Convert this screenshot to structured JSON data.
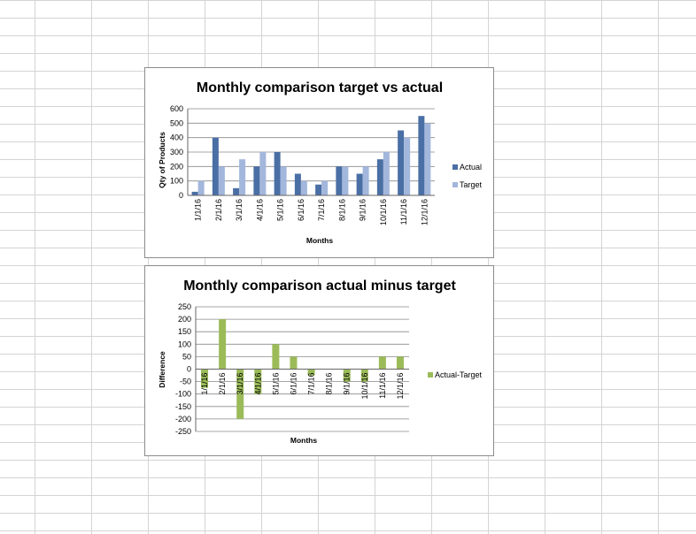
{
  "chart_data": [
    {
      "type": "bar",
      "title": "Monthly comparison target vs actual",
      "xlabel": "Months",
      "ylabel": "Qty of Products",
      "ylim": [
        0,
        600
      ],
      "yticks": [
        "0",
        "100",
        "200",
        "300",
        "400",
        "500",
        "600"
      ],
      "categories": [
        "1/1/16",
        "2/1/16",
        "3/1/16",
        "4/1/16",
        "5/1/16",
        "6/1/16",
        "7/1/16",
        "8/1/16",
        "9/1/16",
        "10/1/16",
        "11/1/16",
        "12/1/16"
      ],
      "series": [
        {
          "name": "Actual",
          "color": "#4a6fa5",
          "values": [
            25,
            400,
            50,
            200,
            300,
            150,
            75,
            200,
            150,
            250,
            450,
            550
          ]
        },
        {
          "name": "Target",
          "color": "#a3b7dc",
          "values": [
            100,
            200,
            250,
            300,
            200,
            100,
            100,
            200,
            200,
            300,
            400,
            500
          ]
        }
      ],
      "grid": true,
      "legend": "right"
    },
    {
      "type": "bar",
      "title": "Monthly comparison actual minus target",
      "xlabel": "Months",
      "ylabel": "Difference",
      "ylim": [
        -250,
        250
      ],
      "yticks": [
        "-250",
        "-200",
        "-150",
        "-100",
        "-50",
        "0",
        "50",
        "100",
        "150",
        "200",
        "250"
      ],
      "categories": [
        "1/1/16",
        "2/1/16",
        "3/1/16",
        "4/1/16",
        "5/1/16",
        "6/1/16",
        "7/1/16",
        "8/1/16",
        "9/1/16",
        "10/1/16",
        "11/1/16",
        "12/1/16"
      ],
      "series": [
        {
          "name": "Actual-Target",
          "color": "#9bbb59",
          "values": [
            -75,
            200,
            -200,
            -100,
            100,
            50,
            -25,
            0,
            -50,
            -50,
            50,
            50
          ]
        }
      ],
      "grid": true,
      "legend": "right"
    }
  ]
}
